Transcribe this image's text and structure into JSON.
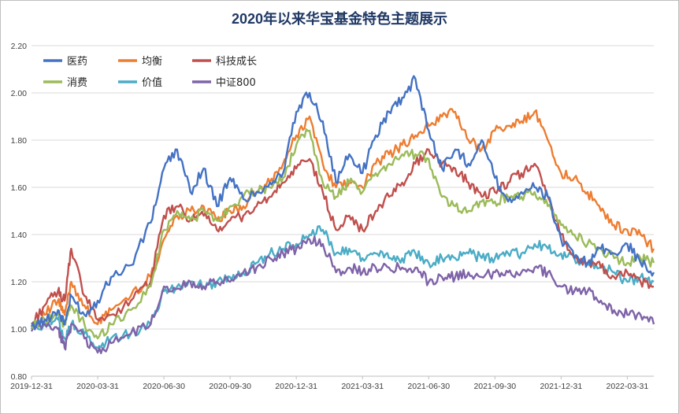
{
  "chart_data": {
    "type": "line",
    "title": "2020年以来华宝基金特色主题展示",
    "xlabel": "",
    "ylabel": "",
    "x_ticks": [
      "2019-12-31",
      "2020-03-31",
      "2020-06-30",
      "2020-09-30",
      "2020-12-31",
      "2021-03-31",
      "2021-06-30",
      "2021-09-30",
      "2021-12-31",
      "2022-03-31"
    ],
    "y_ticks": [
      "0.80",
      "1.00",
      "1.20",
      "1.40",
      "1.60",
      "1.80",
      "2.00",
      "2.20"
    ],
    "ylim": [
      0.8,
      2.2
    ],
    "grid": true,
    "legend_position": "top-left",
    "series": [
      {
        "name": "医药",
        "color": "#4472c4",
        "x": [
          0,
          0.2,
          0.4,
          0.5,
          0.6,
          0.8,
          1,
          1.2,
          1.5,
          1.8,
          2,
          2.2,
          2.4,
          2.6,
          2.8,
          3,
          3.2,
          3.4,
          3.6,
          3.8,
          4,
          4.2,
          4.4,
          4.6,
          4.8,
          5,
          5.2,
          5.4,
          5.6,
          5.8,
          6,
          6.2,
          6.4,
          6.6,
          6.8,
          7,
          7.2,
          7.4,
          7.6,
          7.8,
          8,
          8.2,
          8.4,
          8.6,
          8.8,
          9,
          9.2,
          9.4
        ],
        "values": [
          1.01,
          1.04,
          1.08,
          1.02,
          1.14,
          1.06,
          1.12,
          1.22,
          1.27,
          1.45,
          1.68,
          1.76,
          1.58,
          1.68,
          1.52,
          1.64,
          1.55,
          1.58,
          1.62,
          1.66,
          1.92,
          2.0,
          1.88,
          1.62,
          1.74,
          1.66,
          1.82,
          1.92,
          1.98,
          2.06,
          1.84,
          1.68,
          1.76,
          1.7,
          1.8,
          1.64,
          1.54,
          1.58,
          1.6,
          1.56,
          1.38,
          1.3,
          1.28,
          1.34,
          1.32,
          1.36,
          1.28,
          1.24
        ]
      },
      {
        "name": "均衡",
        "color": "#ed7d31",
        "x": [
          0,
          0.2,
          0.4,
          0.5,
          0.6,
          0.8,
          1,
          1.2,
          1.5,
          1.8,
          2,
          2.2,
          2.4,
          2.6,
          2.8,
          3,
          3.2,
          3.4,
          3.6,
          3.8,
          4,
          4.2,
          4.4,
          4.6,
          4.8,
          5,
          5.2,
          5.4,
          5.6,
          5.8,
          6,
          6.2,
          6.4,
          6.6,
          6.8,
          7,
          7.2,
          7.4,
          7.6,
          7.8,
          8,
          8.2,
          8.4,
          8.6,
          8.8,
          9,
          9.2,
          9.4
        ],
        "values": [
          1.02,
          1.06,
          1.12,
          1.06,
          1.2,
          1.1,
          1.02,
          1.08,
          1.14,
          1.22,
          1.38,
          1.48,
          1.5,
          1.52,
          1.46,
          1.5,
          1.52,
          1.58,
          1.62,
          1.7,
          1.82,
          1.9,
          1.7,
          1.6,
          1.62,
          1.6,
          1.7,
          1.74,
          1.78,
          1.82,
          1.86,
          1.9,
          1.92,
          1.8,
          1.76,
          1.84,
          1.86,
          1.88,
          1.92,
          1.8,
          1.66,
          1.64,
          1.58,
          1.5,
          1.44,
          1.42,
          1.4,
          1.34
        ]
      },
      {
        "name": "科技成长",
        "color": "#c0504d",
        "x": [
          0,
          0.2,
          0.4,
          0.5,
          0.6,
          0.8,
          1,
          1.2,
          1.5,
          1.8,
          2,
          2.2,
          2.4,
          2.6,
          2.8,
          3,
          3.2,
          3.4,
          3.6,
          3.8,
          4,
          4.2,
          4.4,
          4.6,
          4.8,
          5,
          5.2,
          5.4,
          5.6,
          5.8,
          6,
          6.2,
          6.4,
          6.6,
          6.8,
          7,
          7.2,
          7.4,
          7.6,
          7.8,
          8,
          8.2,
          8.4,
          8.6,
          8.8,
          9,
          9.2,
          9.4
        ],
        "values": [
          1.02,
          1.1,
          1.16,
          1.12,
          1.34,
          1.14,
          1.04,
          1.06,
          1.12,
          1.2,
          1.48,
          1.52,
          1.46,
          1.48,
          1.42,
          1.46,
          1.48,
          1.52,
          1.56,
          1.62,
          1.68,
          1.72,
          1.58,
          1.42,
          1.48,
          1.42,
          1.5,
          1.56,
          1.62,
          1.7,
          1.76,
          1.7,
          1.68,
          1.62,
          1.56,
          1.58,
          1.62,
          1.66,
          1.7,
          1.56,
          1.4,
          1.3,
          1.28,
          1.26,
          1.22,
          1.24,
          1.2,
          1.18
        ]
      },
      {
        "name": "消费",
        "color": "#9bbb59",
        "x": [
          0,
          0.2,
          0.4,
          0.5,
          0.6,
          0.8,
          1,
          1.2,
          1.5,
          1.8,
          2,
          2.2,
          2.4,
          2.6,
          2.8,
          3,
          3.2,
          3.4,
          3.6,
          3.8,
          4,
          4.2,
          4.4,
          4.6,
          4.8,
          5,
          5.2,
          5.4,
          5.6,
          5.8,
          6,
          6.2,
          6.4,
          6.6,
          6.8,
          7,
          7.2,
          7.4,
          7.6,
          7.8,
          8,
          8.2,
          8.4,
          8.6,
          8.8,
          9,
          9.2,
          9.4
        ],
        "values": [
          1.01,
          1.04,
          1.06,
          1.02,
          1.1,
          1.02,
          0.96,
          1.02,
          1.08,
          1.18,
          1.42,
          1.5,
          1.46,
          1.5,
          1.46,
          1.52,
          1.56,
          1.58,
          1.6,
          1.64,
          1.78,
          1.84,
          1.62,
          1.56,
          1.62,
          1.58,
          1.66,
          1.7,
          1.74,
          1.74,
          1.72,
          1.56,
          1.52,
          1.5,
          1.54,
          1.54,
          1.56,
          1.56,
          1.58,
          1.52,
          1.44,
          1.4,
          1.36,
          1.34,
          1.3,
          1.28,
          1.3,
          1.28
        ]
      },
      {
        "name": "价值",
        "color": "#4bacc6",
        "x": [
          0,
          0.2,
          0.4,
          0.5,
          0.6,
          0.8,
          1,
          1.2,
          1.5,
          1.8,
          2,
          2.2,
          2.4,
          2.6,
          2.8,
          3,
          3.2,
          3.4,
          3.6,
          3.8,
          4,
          4.2,
          4.4,
          4.6,
          4.8,
          5,
          5.2,
          5.4,
          5.6,
          5.8,
          6,
          6.2,
          6.4,
          6.6,
          6.8,
          7,
          7.2,
          7.4,
          7.6,
          7.8,
          8,
          8.2,
          8.4,
          8.6,
          8.8,
          9,
          9.2,
          9.4
        ],
        "values": [
          1.0,
          1.02,
          1.04,
          0.96,
          1.02,
          0.98,
          0.92,
          0.96,
          0.98,
          1.02,
          1.16,
          1.18,
          1.2,
          1.18,
          1.2,
          1.22,
          1.24,
          1.28,
          1.32,
          1.34,
          1.36,
          1.4,
          1.42,
          1.32,
          1.34,
          1.3,
          1.32,
          1.3,
          1.3,
          1.32,
          1.28,
          1.3,
          1.3,
          1.32,
          1.3,
          1.3,
          1.32,
          1.32,
          1.36,
          1.34,
          1.32,
          1.3,
          1.28,
          1.26,
          1.24,
          1.2,
          1.22,
          1.2
        ]
      },
      {
        "name": "中证800",
        "color": "#7f63a8",
        "x": [
          0,
          0.2,
          0.4,
          0.5,
          0.6,
          0.8,
          1,
          1.2,
          1.5,
          1.8,
          2,
          2.2,
          2.4,
          2.6,
          2.8,
          3,
          3.2,
          3.4,
          3.6,
          3.8,
          4,
          4.2,
          4.4,
          4.6,
          4.8,
          5,
          5.2,
          5.4,
          5.6,
          5.8,
          6,
          6.2,
          6.4,
          6.6,
          6.8,
          7,
          7.2,
          7.4,
          7.6,
          7.8,
          8,
          8.2,
          8.4,
          8.6,
          8.8,
          9,
          9.2,
          9.4
        ],
        "values": [
          0.99,
          1.02,
          1.0,
          0.92,
          1.02,
          0.96,
          0.9,
          0.94,
          0.98,
          1.02,
          1.18,
          1.17,
          1.2,
          1.18,
          1.2,
          1.2,
          1.24,
          1.26,
          1.3,
          1.32,
          1.34,
          1.38,
          1.36,
          1.24,
          1.26,
          1.24,
          1.26,
          1.26,
          1.26,
          1.26,
          1.2,
          1.22,
          1.22,
          1.24,
          1.22,
          1.24,
          1.24,
          1.24,
          1.26,
          1.24,
          1.18,
          1.16,
          1.16,
          1.12,
          1.08,
          1.06,
          1.06,
          1.02
        ]
      }
    ]
  }
}
